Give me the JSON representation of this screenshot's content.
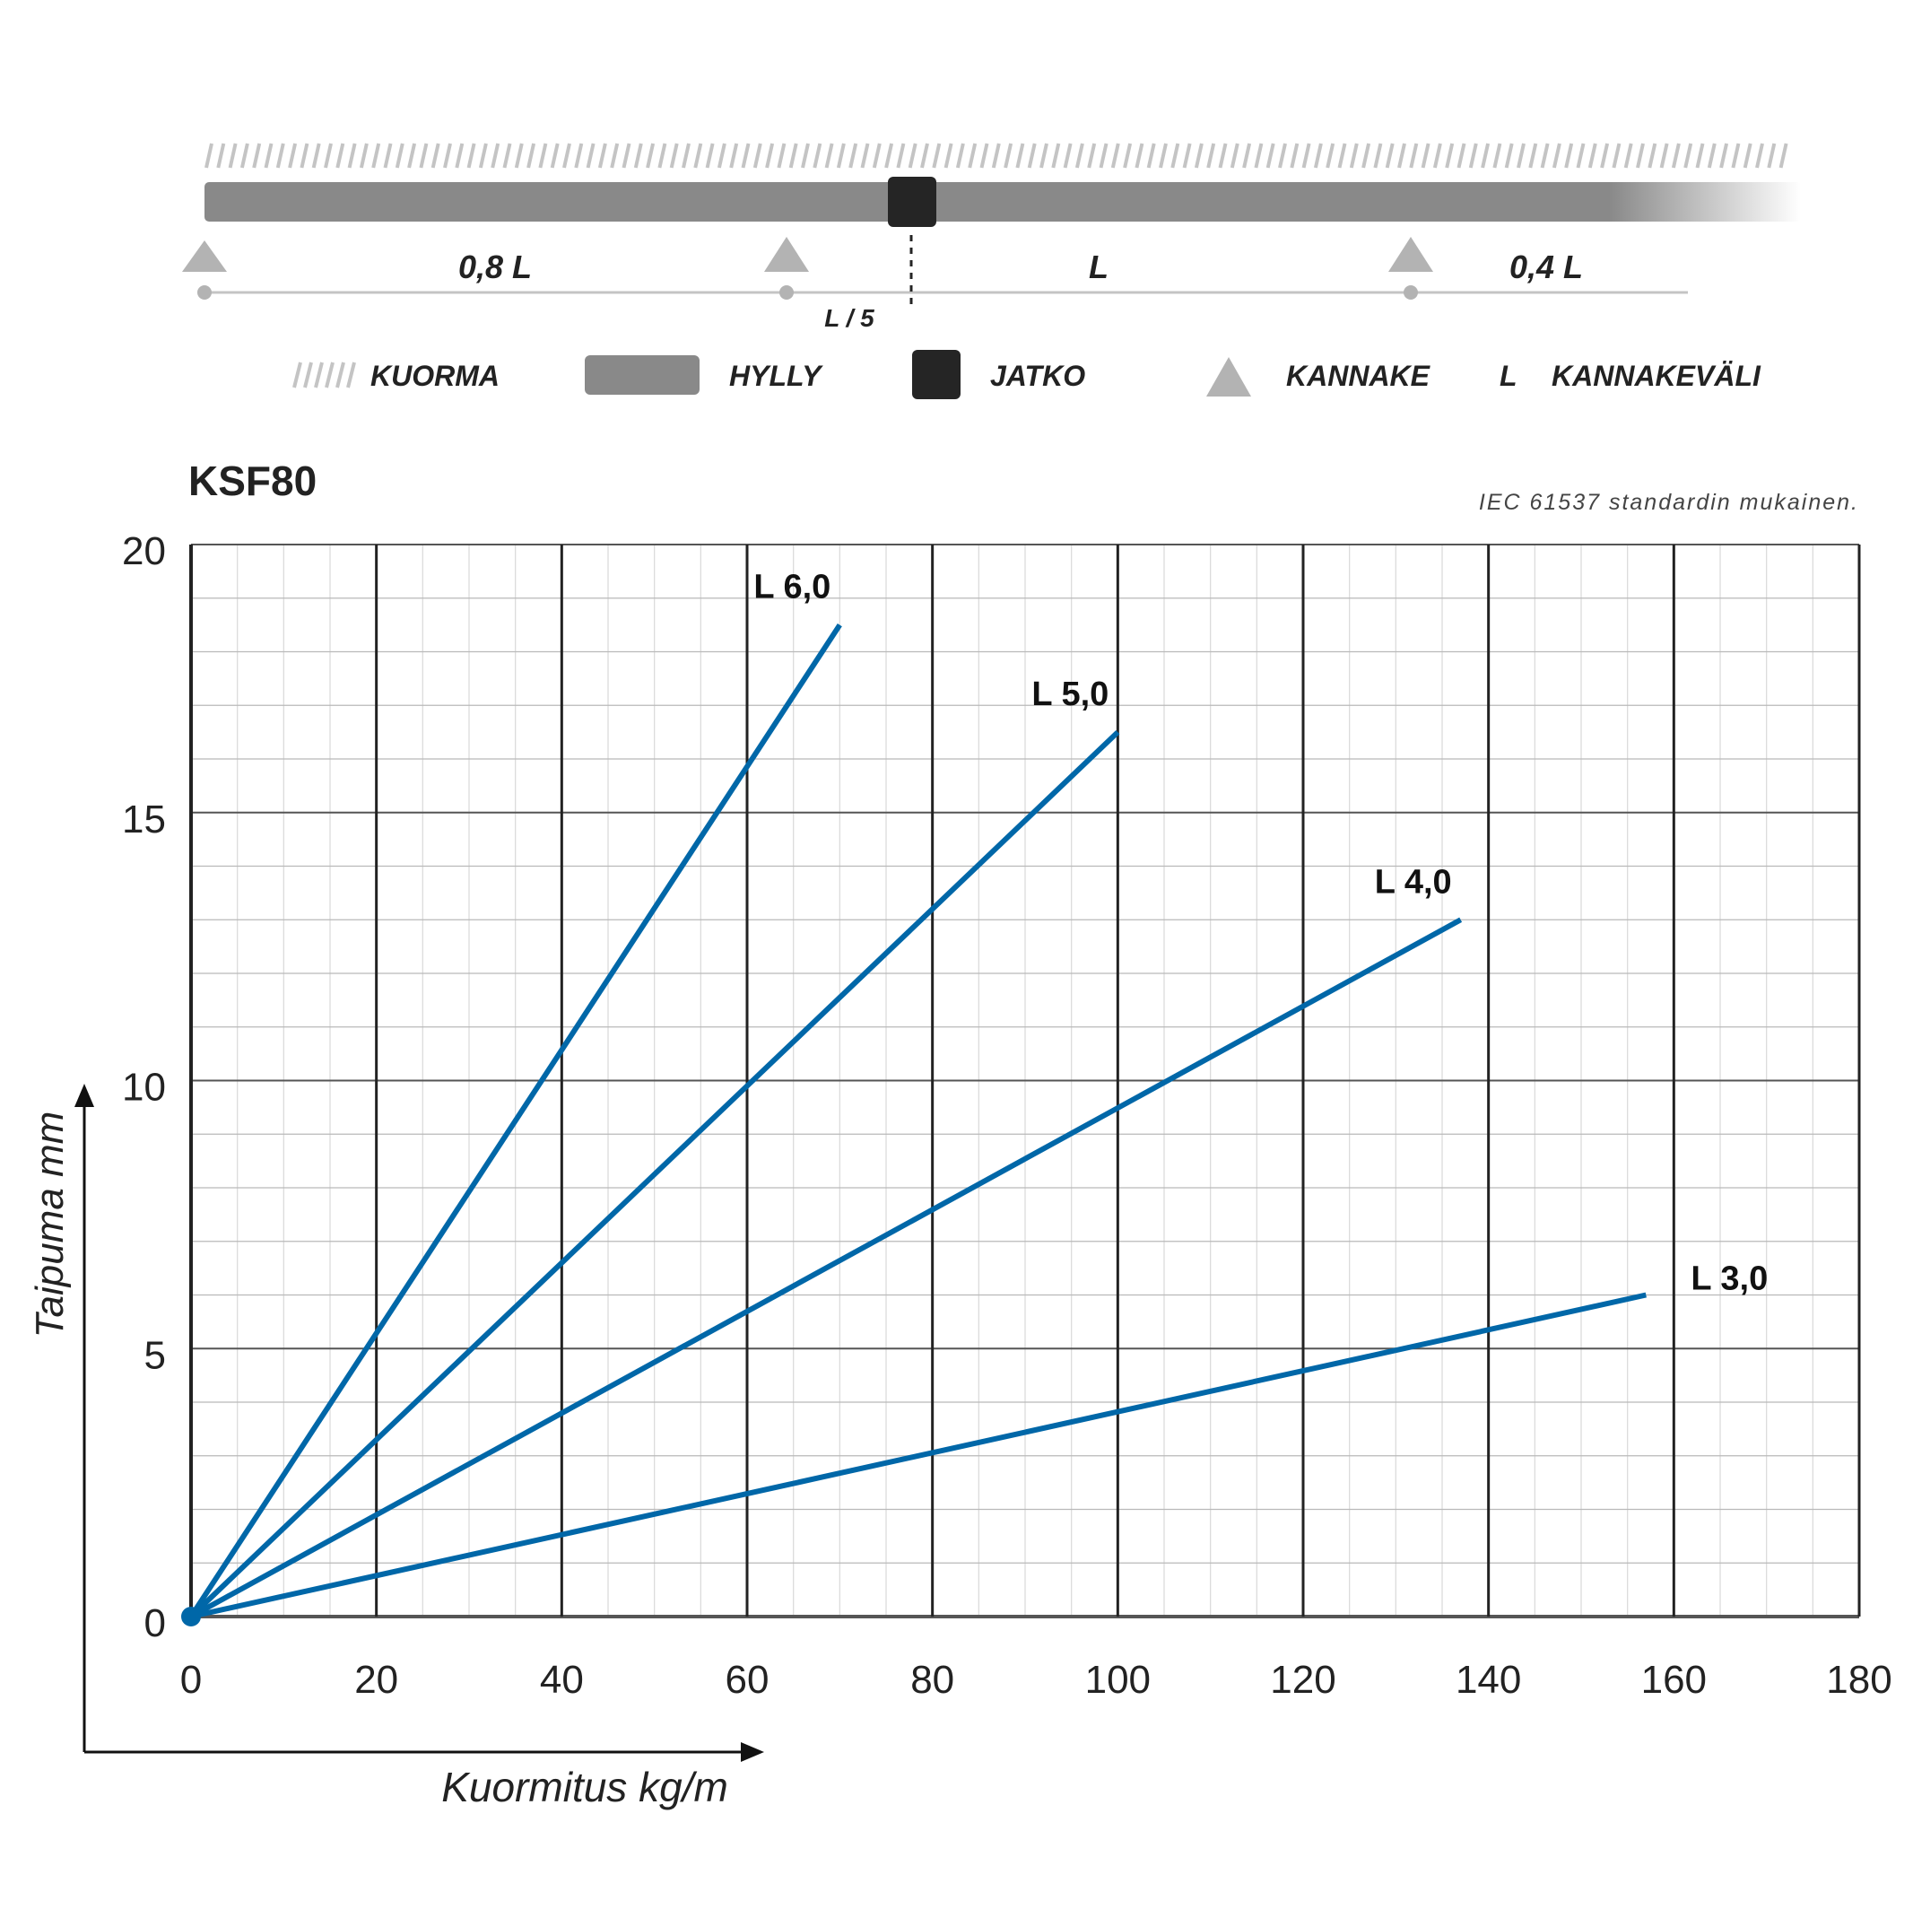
{
  "diagram": {
    "span_labels": [
      "0,8 L",
      "L",
      "0,4 L"
    ],
    "offset_label": "L / 5",
    "legend": [
      {
        "key": "load",
        "label": "KUORMA",
        "icon": "hatch-icon"
      },
      {
        "key": "shelf",
        "label": "HYLLY",
        "icon": "bar-icon"
      },
      {
        "key": "joint",
        "label": "JATKO",
        "icon": "square-icon"
      },
      {
        "key": "bracket",
        "label": "KANNAKE",
        "icon": "triangle-icon"
      },
      {
        "key": "span",
        "symbol": "L",
        "label": "KANNAKEVÄLI"
      }
    ],
    "colors": {
      "shelf": "#898989",
      "joint": "#252525",
      "support": "#b3b3b3",
      "hatch": "#c4c4c4"
    }
  },
  "chart_data": {
    "type": "line",
    "title": "KSF80",
    "note": "IEC 61537 standardin mukainen.",
    "xlabel": "Kuormitus kg/m",
    "ylabel": "Taipuma mm",
    "xlim": [
      0,
      180
    ],
    "ylim": [
      0,
      20
    ],
    "xticks": [
      0,
      20,
      40,
      60,
      80,
      100,
      120,
      140,
      160,
      180
    ],
    "yticks": [
      0,
      5,
      10,
      15,
      20
    ],
    "grid": true,
    "line_color": "#0067a8",
    "series": [
      {
        "name": "L 6,0",
        "x": [
          0,
          70
        ],
        "y": [
          0,
          18.5
        ]
      },
      {
        "name": "L 5,0",
        "x": [
          0,
          100
        ],
        "y": [
          0,
          16.5
        ]
      },
      {
        "name": "L 4,0",
        "x": [
          0,
          137
        ],
        "y": [
          0,
          13
        ]
      },
      {
        "name": "L 3,0",
        "x": [
          0,
          157
        ],
        "y": [
          0,
          6
        ]
      }
    ]
  }
}
